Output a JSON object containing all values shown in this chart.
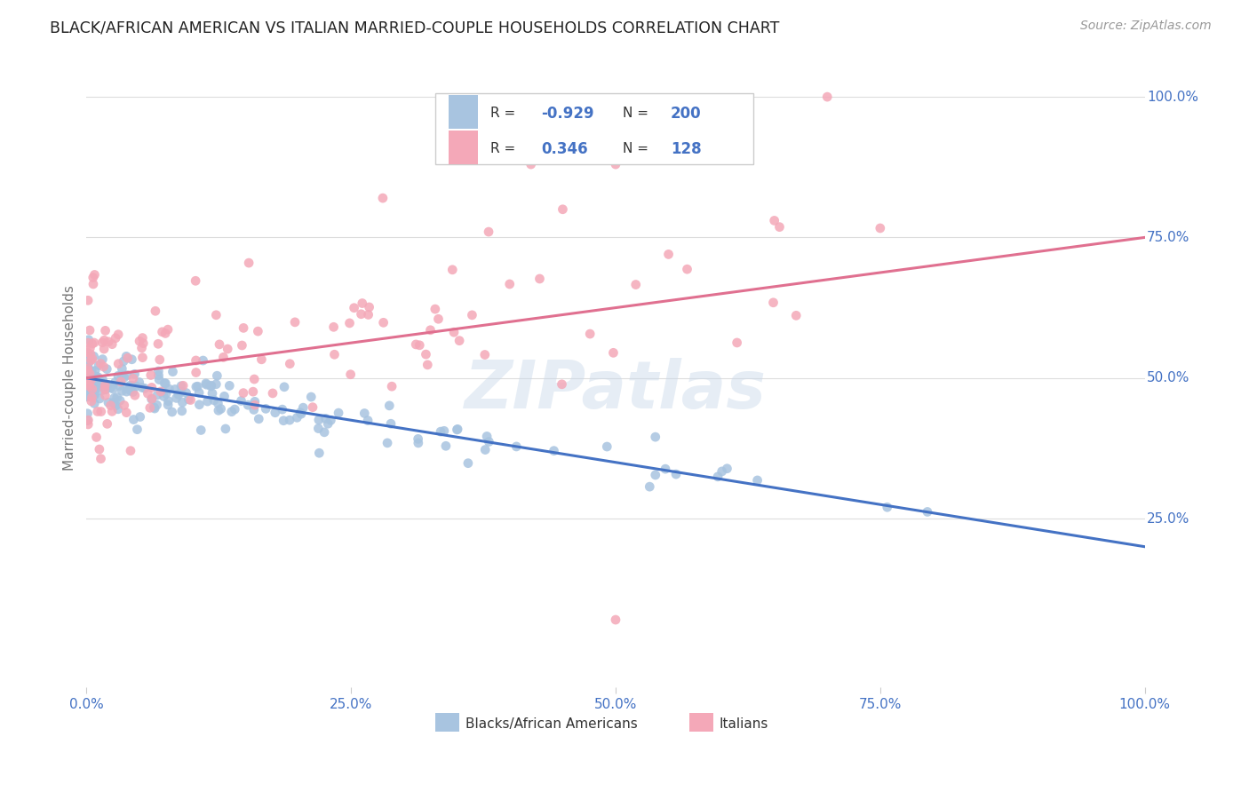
{
  "title": "BLACK/AFRICAN AMERICAN VS ITALIAN MARRIED-COUPLE HOUSEHOLDS CORRELATION CHART",
  "source": "Source: ZipAtlas.com",
  "ylabel": "Married-couple Households",
  "blue_R": "-0.929",
  "blue_N": "200",
  "pink_R": "0.346",
  "pink_N": "128",
  "watermark": "ZIPatlas",
  "blue_color": "#a8c4e0",
  "pink_color": "#f4a8b8",
  "blue_line_color": "#4472c4",
  "pink_line_color": "#e07090",
  "title_color": "#222222",
  "label_color": "#4472c4",
  "axis_label_color": "#777777",
  "tick_label_color": "#4472c4",
  "background_color": "#ffffff",
  "grid_color": "#dddddd",
  "xlim": [
    0.0,
    1.0
  ],
  "ylim": [
    -0.05,
    1.05
  ],
  "blue_line_x0": 0.0,
  "blue_line_y0": 0.5,
  "blue_line_x1": 1.0,
  "blue_line_y1": 0.2,
  "pink_line_x0": 0.0,
  "pink_line_y0": 0.5,
  "pink_line_x1": 1.0,
  "pink_line_y1": 0.75
}
